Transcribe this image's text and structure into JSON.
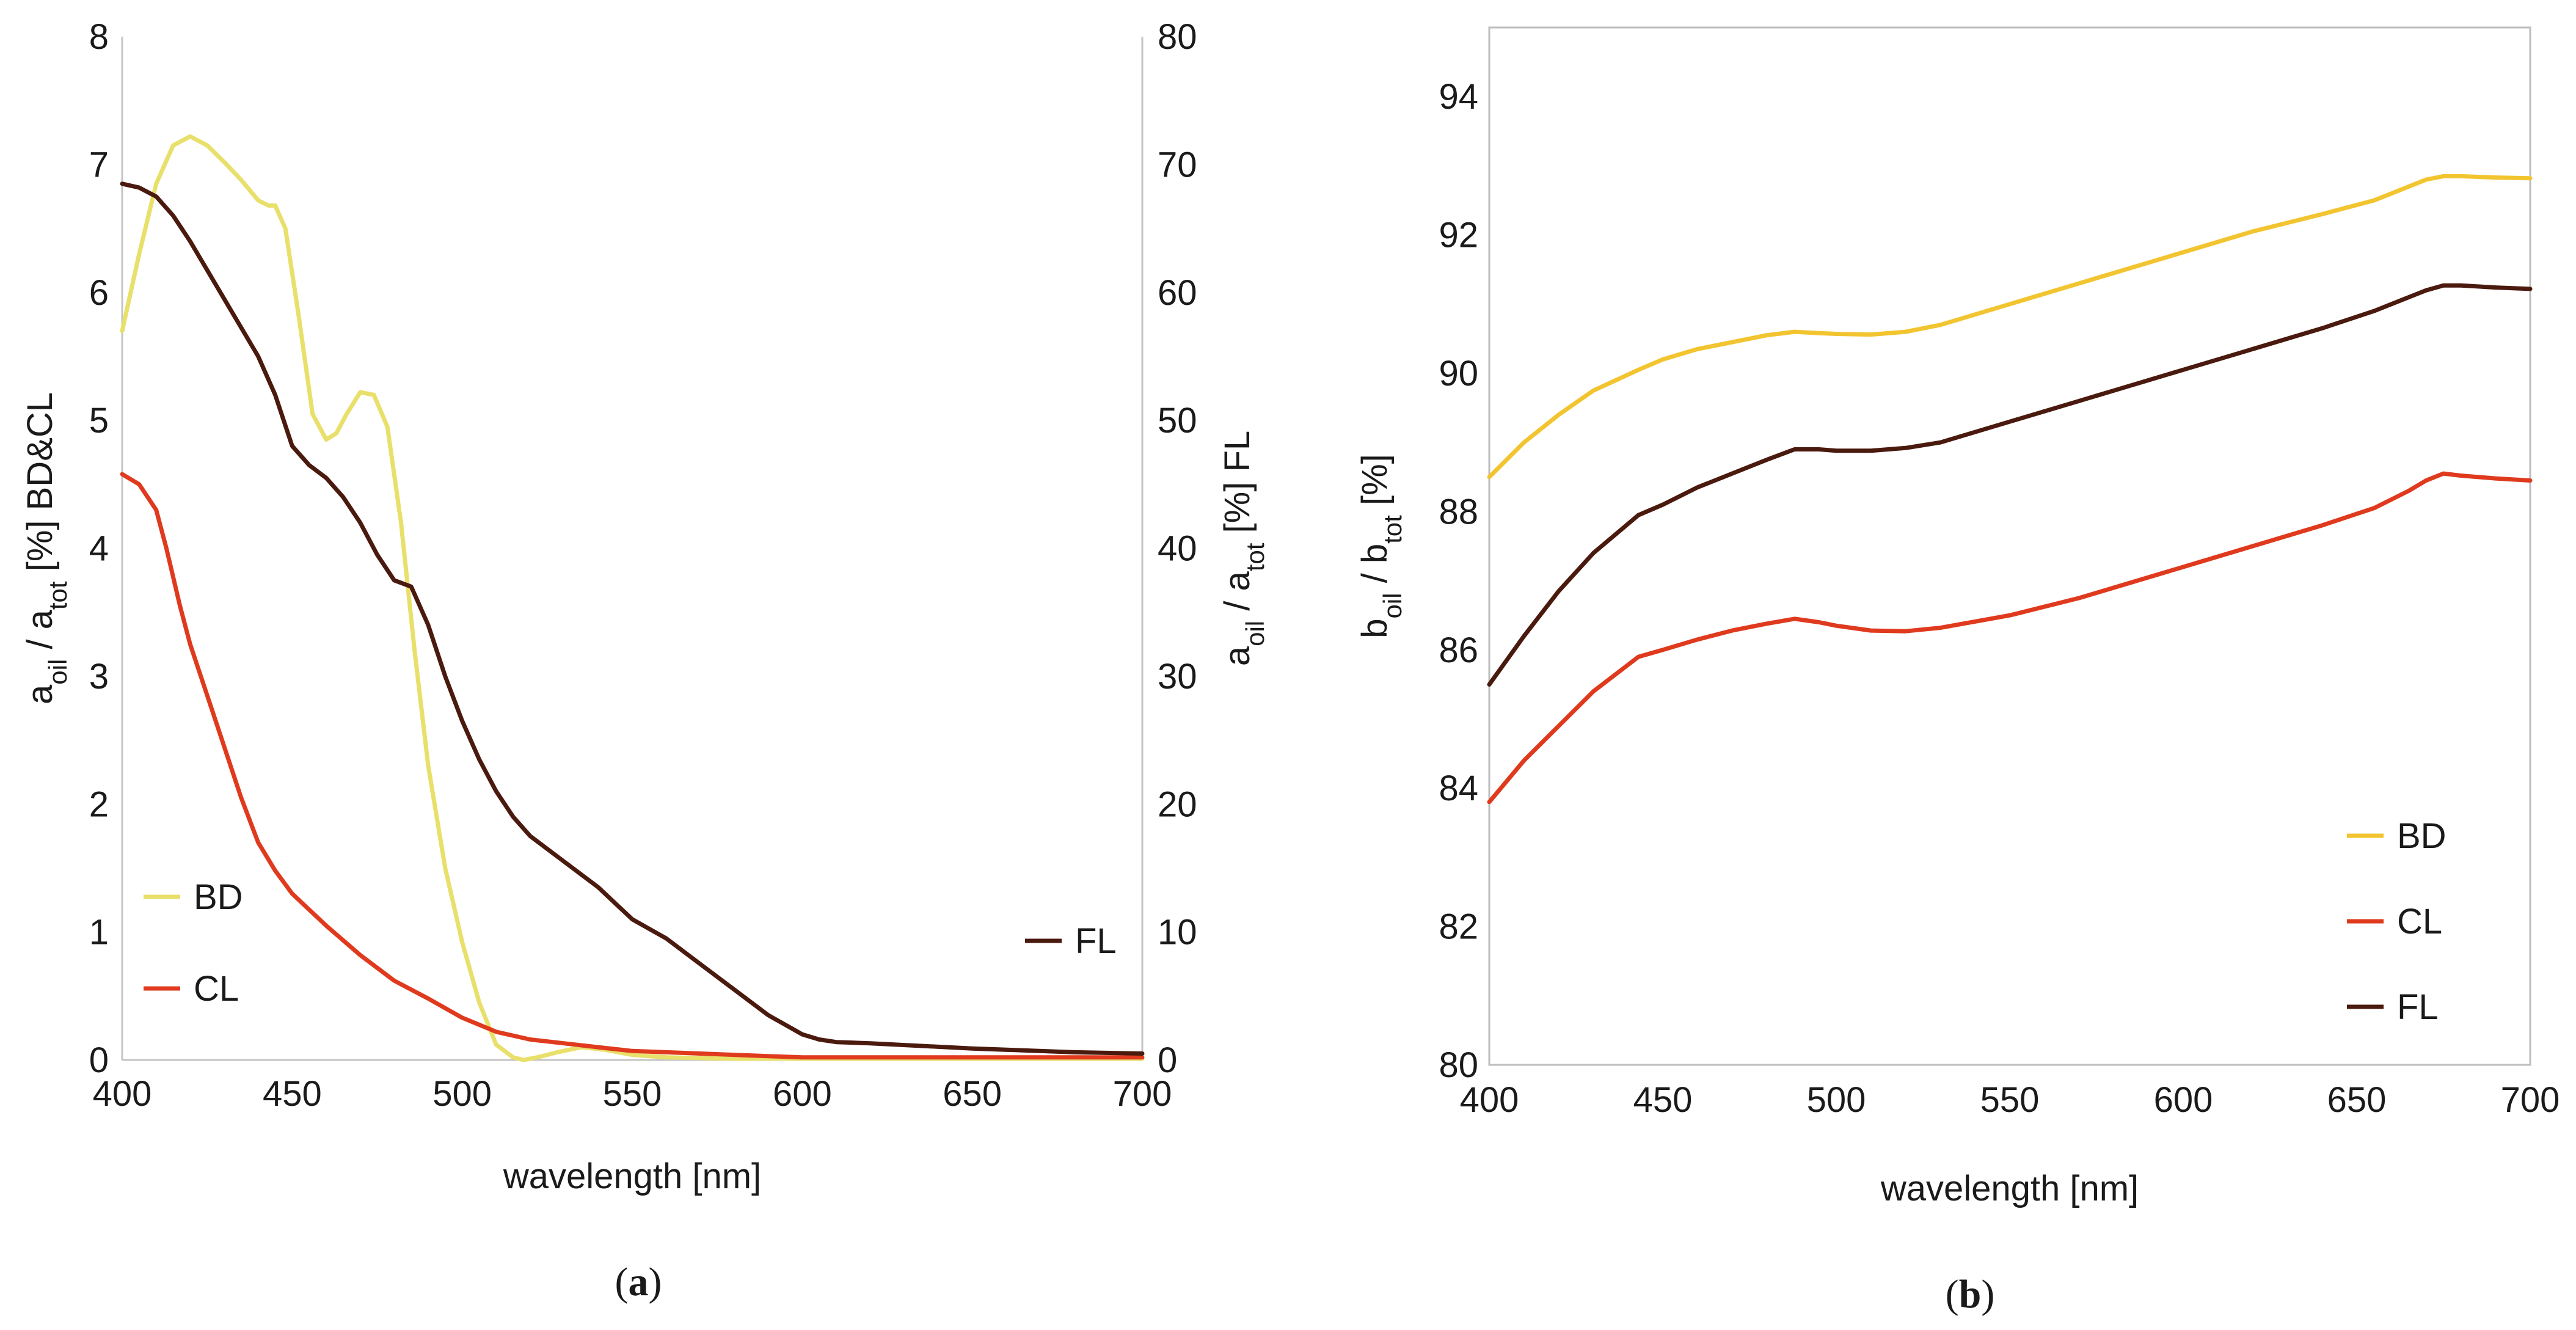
{
  "chart_data": [
    {
      "type": "line",
      "panel": "a",
      "caption": {
        "open": "(",
        "letter": "a",
        "close": ")"
      },
      "xlabel": "wavelength [nm]",
      "ylabel_left": {
        "base": "a",
        "sub1": "oil",
        "mid": " / a",
        "sub2": "tot",
        "tail": "  [%] BD&CL"
      },
      "ylabel_right": {
        "base": "a",
        "sub1": "oil",
        "mid": " / a",
        "sub2": "tot",
        "tail": "  [%] FL"
      },
      "xlim": [
        400,
        700
      ],
      "xticks": [
        400,
        450,
        500,
        550,
        600,
        650,
        700
      ],
      "ylim_left": [
        0,
        8
      ],
      "yticks_left": [
        0,
        1,
        2,
        3,
        4,
        5,
        6,
        7,
        8
      ],
      "ylim_right": [
        0,
        80
      ],
      "yticks_right": [
        0,
        10,
        20,
        30,
        40,
        50,
        60,
        70,
        80
      ],
      "series": [
        {
          "name": "BD",
          "axis": "left",
          "color": "#e8e06a",
          "x": [
            400,
            405,
            410,
            415,
            420,
            425,
            430,
            435,
            440,
            443,
            445,
            448,
            452,
            456,
            460,
            463,
            466,
            470,
            474,
            478,
            482,
            486,
            490,
            495,
            500,
            505,
            510,
            515,
            518,
            522,
            528,
            535,
            542,
            550,
            560,
            580,
            600,
            650,
            700
          ],
          "y": [
            5.7,
            6.3,
            6.85,
            7.15,
            7.22,
            7.15,
            7.02,
            6.88,
            6.72,
            6.68,
            6.68,
            6.5,
            5.8,
            5.05,
            4.85,
            4.9,
            5.05,
            5.22,
            5.2,
            4.95,
            4.2,
            3.2,
            2.3,
            1.5,
            0.92,
            0.45,
            0.12,
            0.02,
            0.0,
            0.02,
            0.06,
            0.1,
            0.08,
            0.04,
            0.02,
            0.01,
            0.01,
            0.01,
            0.01
          ]
        },
        {
          "name": "CL",
          "axis": "left",
          "color": "#e03a1e",
          "x": [
            400,
            405,
            410,
            413,
            417,
            420,
            425,
            430,
            435,
            440,
            445,
            450,
            460,
            470,
            480,
            490,
            500,
            510,
            520,
            530,
            540,
            550,
            570,
            600,
            650,
            700
          ],
          "y": [
            4.58,
            4.5,
            4.3,
            4.0,
            3.55,
            3.25,
            2.85,
            2.45,
            2.05,
            1.7,
            1.48,
            1.3,
            1.05,
            0.82,
            0.62,
            0.48,
            0.33,
            0.22,
            0.16,
            0.13,
            0.1,
            0.07,
            0.05,
            0.02,
            0.02,
            0.02
          ]
        },
        {
          "name": "FL",
          "axis": "right",
          "color": "#4a1a0e",
          "x": [
            400,
            405,
            410,
            415,
            420,
            430,
            440,
            445,
            450,
            455,
            460,
            465,
            470,
            475,
            480,
            485,
            490,
            495,
            500,
            505,
            510,
            515,
            520,
            530,
            540,
            550,
            560,
            570,
            580,
            590,
            600,
            605,
            610,
            620,
            650,
            680,
            700
          ],
          "y": [
            68.5,
            68.2,
            67.5,
            66.0,
            64.0,
            59.5,
            55.0,
            52.0,
            48.0,
            46.5,
            45.5,
            44.0,
            42.0,
            39.5,
            37.5,
            37.0,
            34.0,
            30.0,
            26.5,
            23.5,
            21.0,
            19.0,
            17.5,
            15.5,
            13.5,
            11.0,
            9.5,
            7.5,
            5.5,
            3.5,
            2.0,
            1.6,
            1.4,
            1.3,
            0.9,
            0.6,
            0.5
          ]
        }
      ],
      "legend": [
        {
          "label": "BD",
          "color": "#e8e06a"
        },
        {
          "label": "CL",
          "color": "#e03a1e"
        },
        {
          "label": "FL",
          "color": "#4a1a0e"
        }
      ]
    },
    {
      "type": "line",
      "panel": "b",
      "caption": {
        "open": "(",
        "letter": "b",
        "close": ")"
      },
      "xlabel": "wavelength [nm]",
      "ylabel_left": {
        "base": "b",
        "sub1": "oil",
        "mid": " / b",
        "sub2": "tot",
        "tail": "  [%]"
      },
      "xlim": [
        400,
        700
      ],
      "xticks": [
        400,
        450,
        500,
        550,
        600,
        650,
        700
      ],
      "ylim_left": [
        80,
        95
      ],
      "yticks_left": [
        80,
        82,
        84,
        86,
        88,
        90,
        92,
        94
      ],
      "series": [
        {
          "name": "BD",
          "axis": "left",
          "color": "#f2c530",
          "x": [
            400,
            410,
            420,
            430,
            443,
            450,
            460,
            470,
            480,
            488,
            495,
            500,
            510,
            520,
            530,
            550,
            570,
            600,
            620,
            640,
            655,
            665,
            670,
            675,
            680,
            690,
            700
          ],
          "y": [
            88.5,
            89.0,
            89.4,
            89.75,
            90.05,
            90.2,
            90.35,
            90.45,
            90.55,
            90.6,
            90.58,
            90.57,
            90.56,
            90.6,
            90.7,
            91.0,
            91.3,
            91.75,
            92.05,
            92.3,
            92.5,
            92.7,
            92.8,
            92.85,
            92.85,
            92.83,
            92.82
          ]
        },
        {
          "name": "CL",
          "axis": "left",
          "color": "#e03a1e",
          "x": [
            400,
            410,
            420,
            430,
            443,
            450,
            460,
            470,
            480,
            488,
            495,
            500,
            510,
            520,
            530,
            550,
            570,
            600,
            620,
            640,
            655,
            665,
            670,
            675,
            680,
            690,
            700
          ],
          "y": [
            83.8,
            84.4,
            84.9,
            85.4,
            85.9,
            86.0,
            86.15,
            86.28,
            86.38,
            86.45,
            86.4,
            86.35,
            86.28,
            86.27,
            86.32,
            86.5,
            86.75,
            87.2,
            87.5,
            87.8,
            88.05,
            88.3,
            88.45,
            88.55,
            88.52,
            88.48,
            88.45
          ]
        },
        {
          "name": "FL",
          "axis": "left",
          "color": "#4a1a0e",
          "x": [
            400,
            410,
            420,
            430,
            443,
            450,
            460,
            470,
            480,
            488,
            495,
            500,
            510,
            520,
            530,
            550,
            570,
            600,
            620,
            640,
            655,
            665,
            670,
            675,
            680,
            690,
            700
          ],
          "y": [
            85.5,
            86.2,
            86.85,
            87.4,
            87.95,
            88.1,
            88.35,
            88.55,
            88.75,
            88.9,
            88.9,
            88.88,
            88.88,
            88.92,
            89.0,
            89.3,
            89.6,
            90.05,
            90.35,
            90.65,
            90.9,
            91.1,
            91.2,
            91.27,
            91.27,
            91.24,
            91.22
          ]
        }
      ],
      "legend": [
        {
          "label": "BD",
          "color": "#f2c530"
        },
        {
          "label": "CL",
          "color": "#e03a1e"
        },
        {
          "label": "FL",
          "color": "#4a1a0e"
        }
      ]
    }
  ]
}
